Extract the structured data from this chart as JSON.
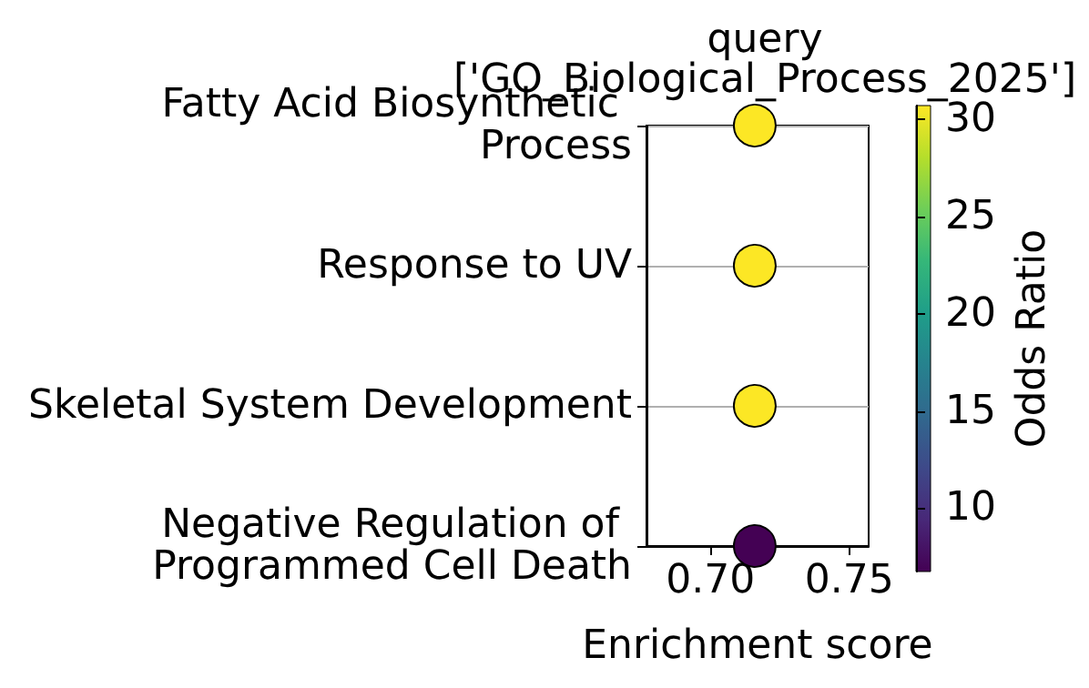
{
  "chart_data": {
    "type": "scatter",
    "title": "query\n['GO_Biological_Process_2025']",
    "xlabel": "Enrichment score",
    "clabel": "Odds Ratio",
    "categories": [
      "Fatty Acid Biosynthetic Process",
      "Response to UV",
      "Skeletal System Development",
      "Negative Regulation of Programmed Cell Death"
    ],
    "values": [
      0.716,
      0.716,
      0.716,
      0.716
    ],
    "cvalues": [
      30.7,
      30.7,
      30.7,
      6.74
    ],
    "clim": [
      6.74,
      30.72
    ],
    "cticks": [
      10,
      15,
      20,
      25,
      30
    ],
    "xlim": [
      0.677,
      0.757
    ],
    "xticks": [
      {
        "value": 0.7,
        "label": "0.70"
      },
      {
        "value": 0.75,
        "label": "0.75"
      }
    ],
    "orientation": "horizontal",
    "grid": "y",
    "marker": "circle"
  }
}
